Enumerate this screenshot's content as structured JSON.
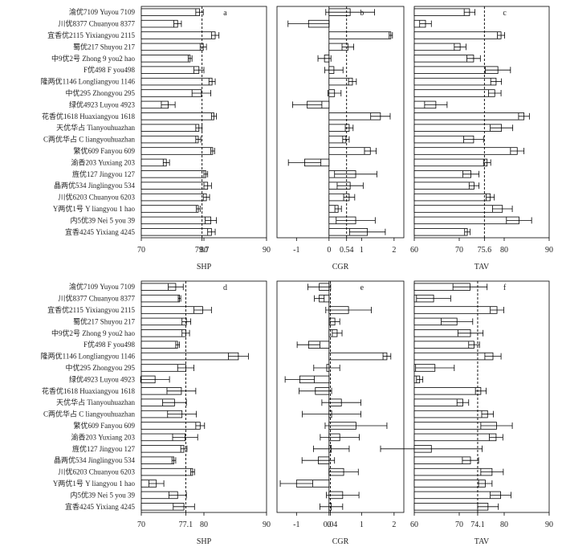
{
  "varieties": [
    "渝优7109 Yuyou 7109",
    "川优8377 Chuanyou 8377",
    "宜香优2115 Yixiangyou 2115",
    "蜀优217 Shuyou 217",
    "中9优2号 Zhong 9 you2 hao",
    "F优498 F you498",
    "隆两优1146 Longliangyou 1146",
    "中优295 Zhongyou 295",
    "绿优4923 Luyou 4923",
    "花香优1618 Huaxiangyou 1618",
    "天优华占 Tianyouhuazhan",
    "C两优华占 C liangyouhuazhan",
    "繁优609 Fanyou 609",
    "渝香203 Yuxiang 203",
    "旌优127 Jingyou 127",
    "晶两优534 Jinglingyou 534",
    "川优6203 Chuanyou 6203",
    "Y两优1号 Y liangyou 1 hao",
    "内5优39 Nei 5 you 39",
    "宜香4245 Yixiang 4245"
  ],
  "chart_data": [
    {
      "type": "bar",
      "orientation": "horizontal",
      "panel_label": "a",
      "xlabel": "SHP",
      "xlim": [
        70,
        90
      ],
      "xticks": [
        "70",
        "79.7",
        "80",
        "90"
      ],
      "reference_line": 79.7,
      "values": [
        79.3,
        75.8,
        81.8,
        79.9,
        77.8,
        79.2,
        81.3,
        79.6,
        74.3,
        81.6,
        79.2,
        79.1,
        81.4,
        74.0,
        80.3,
        80.6,
        80.4,
        79.1,
        81.1,
        81.2
      ],
      "errors": [
        0.6,
        0.6,
        0.6,
        0.5,
        0.3,
        0.8,
        0.5,
        1.5,
        1.1,
        0.4,
        0.5,
        0.4,
        0.3,
        0.5,
        0.3,
        0.6,
        0.5,
        0.3,
        0.9,
        0.6
      ]
    },
    {
      "type": "bar",
      "orientation": "horizontal",
      "panel_label": "b",
      "xlabel": "CGR",
      "xlim": [
        -1.6,
        2.3
      ],
      "xticks": [
        "-1",
        "0",
        "0.54",
        "1",
        "2"
      ],
      "reference_line": 0.54,
      "values": [
        0.65,
        -0.63,
        1.9,
        0.58,
        -0.14,
        0.15,
        0.72,
        0.17,
        -0.67,
        1.58,
        0.62,
        0.52,
        1.27,
        -0.75,
        0.82,
        0.65,
        0.62,
        0.28,
        0.82,
        1.18
      ],
      "errors": [
        0.75,
        0.63,
        0.05,
        0.18,
        0.2,
        0.28,
        0.12,
        0.2,
        0.45,
        0.3,
        0.12,
        0.1,
        0.18,
        0.5,
        0.65,
        0.4,
        0.17,
        0.1,
        0.6,
        0.55
      ]
    },
    {
      "type": "bar",
      "orientation": "horizontal",
      "panel_label": "c",
      "xlabel": "TAV",
      "xlim": [
        60,
        90
      ],
      "xticks": [
        "60",
        "70",
        "75.6",
        "80",
        "90"
      ],
      "reference_line": 75.6,
      "values": [
        72.3,
        62.5,
        79.3,
        70.2,
        73.2,
        78.6,
        78.2,
        77.9,
        64.8,
        84.4,
        79.4,
        73.2,
        82.9,
        76.2,
        72.6,
        73.3,
        76.9,
        79.6,
        83.3,
        71.8
      ],
      "errors": [
        1.2,
        1.3,
        0.8,
        1.3,
        1.5,
        2.8,
        1.2,
        1.4,
        2.5,
        1.2,
        2.5,
        2.2,
        1.5,
        0.8,
        1.8,
        1.1,
        0.9,
        2.2,
        2.8,
        0.6
      ]
    },
    {
      "type": "bar",
      "orientation": "horizontal",
      "panel_label": "d",
      "xlabel": "SHP",
      "xlim": [
        70,
        90
      ],
      "xticks": [
        "70",
        "77.1",
        "80",
        "90"
      ],
      "reference_line": 77.1,
      "values": [
        75.5,
        76.1,
        79.8,
        77.2,
        77.1,
        75.8,
        85.5,
        77.1,
        72.2,
        76.4,
        75.3,
        76.5,
        79.4,
        77.0,
        76.8,
        75.2,
        78.2,
        72.4,
        75.8,
        76.8
      ],
      "errors": [
        1.2,
        0.2,
        1.4,
        0.7,
        0.6,
        0.3,
        1.6,
        1.3,
        2.3,
        2.3,
        1.9,
        2.3,
        0.7,
        2.0,
        0.5,
        0.3,
        0.3,
        1.2,
        1.4,
        1.7
      ]
    },
    {
      "type": "bar",
      "orientation": "horizontal",
      "panel_label": "e",
      "xlabel": "CGR",
      "xlim": [
        -1.6,
        2.3
      ],
      "xticks": [
        "-1",
        "0",
        "0.04",
        "1",
        "2"
      ],
      "reference_line": 0.04,
      "values": [
        -0.3,
        -0.3,
        0.6,
        0.18,
        0.25,
        -0.63,
        1.78,
        -0.07,
        -0.9,
        -0.42,
        0.38,
        0.08,
        0.83,
        0.33,
        0.07,
        -0.33,
        0.45,
        -1.0,
        0.42,
        0.07
      ],
      "errors": [
        0.35,
        0.15,
        0.7,
        0.15,
        0.15,
        0.35,
        0.12,
        0.4,
        0.45,
        0.5,
        0.6,
        0.9,
        0.95,
        0.6,
        0.55,
        0.5,
        0.45,
        0.5,
        0.5,
        0.35
      ]
    },
    {
      "type": "bar",
      "orientation": "horizontal",
      "panel_label": "f",
      "xlabel": "TAV",
      "xlim": [
        60,
        90
      ],
      "xticks": [
        "60",
        "70",
        "74.1",
        "80",
        "90"
      ],
      "reference_line": 74.1,
      "values": [
        72.4,
        64.3,
        78.4,
        69.5,
        72.5,
        73.3,
        77.5,
        64.6,
        61.2,
        74.8,
        70.8,
        76.3,
        78.3,
        78.2,
        63.8,
        72.5,
        77.3,
        75.8,
        79.2,
        76.4
      ],
      "errors": [
        3.8,
        3.8,
        1.5,
        3.5,
        2.8,
        1.2,
        1.8,
        4.3,
        0.7,
        1.2,
        1.3,
        1.3,
        3.5,
        1.5,
        11.3,
        1.8,
        2.5,
        1.5,
        2.3,
        2.3
      ]
    }
  ]
}
